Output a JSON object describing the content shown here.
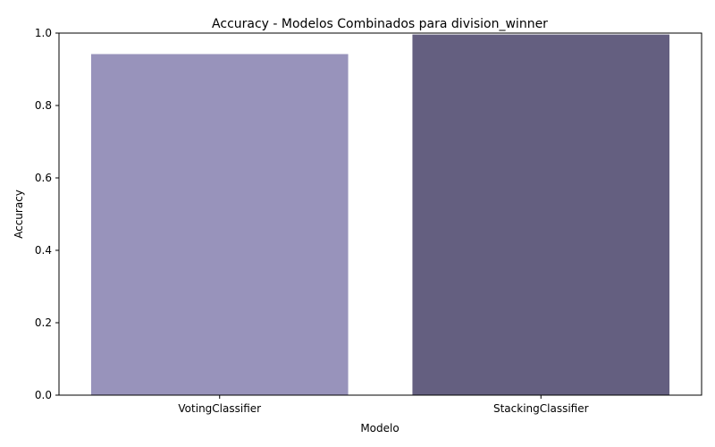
{
  "chart_data": {
    "type": "bar",
    "title": "Accuracy - Modelos Combinados para division_winner",
    "xlabel": "Modelo",
    "ylabel": "Accuracy",
    "categories": [
      "VotingClassifier",
      "StackingClassifier"
    ],
    "values": [
      0.942,
      0.996
    ],
    "colors": [
      "#9893bb",
      "#645f80"
    ],
    "ylim": [
      0,
      1.0
    ],
    "yticks": [
      "0.0",
      "0.2",
      "0.4",
      "0.6",
      "0.8",
      "1.0"
    ],
    "grid": false,
    "legend": "none"
  }
}
